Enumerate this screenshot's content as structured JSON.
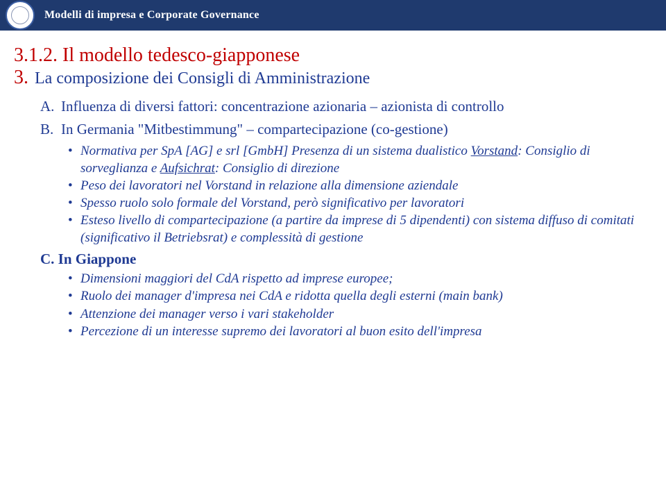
{
  "header": {
    "title": "Modelli di impresa e Corporate Governance"
  },
  "main": {
    "heading": "3.1.2. Il modello tedesco-giapponese",
    "sub_num": "3.",
    "sub_title": "La composizione dei Consigli di Amministrazione",
    "A": {
      "lbl": "A.",
      "txt": "Influenza di diversi fattori: concentrazione azionaria – azionista di controllo"
    },
    "B": {
      "lbl": "B.",
      "txt": "In Germania \"Mitbestimmung\" – compartecipazione (co-gestione)",
      "b1_pre": "Normativa per SpA [AG] e srl [GmbH]  Presenza di un sistema dualistico ",
      "b1_u1": "Vorstand",
      "b1_mid": ": Consiglio di sorveglianza e ",
      "b1_u2": "Aufsichrat",
      "b1_post": ": Consiglio di direzione",
      "b2": "Peso dei lavoratori nel Vorstand in relazione alla dimensione aziendale",
      "b3": "Spesso ruolo solo formale del Vorstand, però significativo per lavoratori",
      "b4": "Esteso livello di compartecipazione (a partire da imprese di 5 dipendenti) con sistema diffuso di comitati (significativo il Betriebsrat) e complessità di gestione"
    },
    "C": {
      "lbl": "C. In Giappone",
      "c1": "Dimensioni maggiori del CdA rispetto ad imprese europee;",
      "c2": "Ruolo dei manager d'impresa nei CdA e ridotta quella degli esterni (main bank)",
      "c3": "Attenzione dei manager verso i vari stakeholder",
      "c4": "Percezione di un interesse supremo dei lavoratori al buon esito dell'impresa"
    },
    "bullet": "•"
  }
}
